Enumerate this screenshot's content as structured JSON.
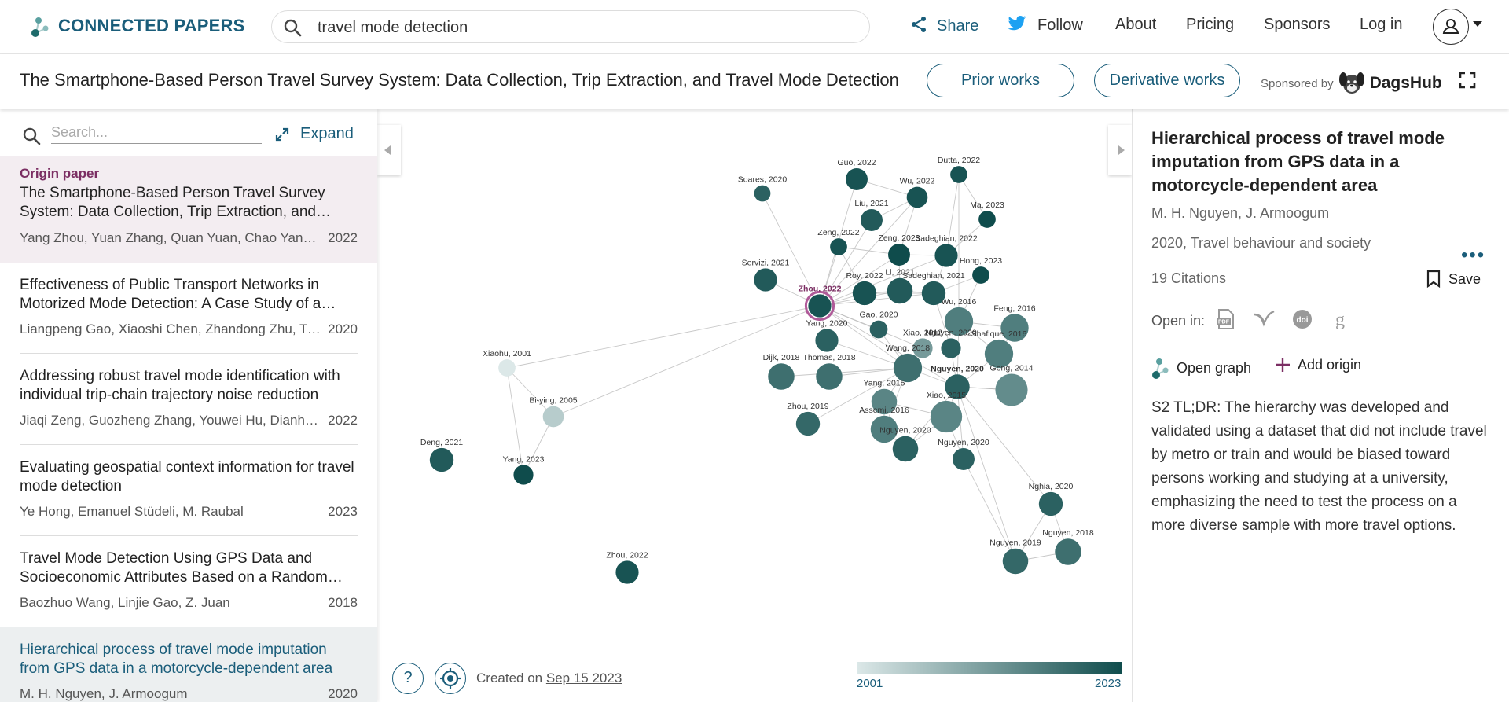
{
  "header": {
    "brand": "CONNECTED PAPERS",
    "search_value": "travel mode detection",
    "nav": {
      "share": "Share",
      "follow": "Follow",
      "about": "About",
      "pricing": "Pricing",
      "sponsors": "Sponsors",
      "login": "Log in"
    }
  },
  "titlebar": {
    "title": "The Smartphone-Based Person Travel Survey System: Data Collection, Trip Extraction, and Travel Mode Detection",
    "prior": "Prior works",
    "derivative": "Derivative works",
    "sponsored_by": "Sponsored by",
    "sponsor_name": "DagsHub"
  },
  "sidebar": {
    "search_placeholder": "Search...",
    "expand": "Expand",
    "origin_label": "Origin paper",
    "papers": [
      {
        "title": "The Smartphone-Based Person Travel Survey System: Data Collection, Trip Extraction, and Travel Mode Detection",
        "authors": "Yang Zhou, Yuan Zhang, Quan Yuan, Chao Yang, Tangyi Guo",
        "year": "2022"
      },
      {
        "title": "Effectiveness of Public Transport Networks in Motorized Mode Detection: A Case Study of a Chinese City",
        "authors": "Liangpeng Gao, Xiaoshi Chen, Zhandong Zhu, Tian",
        "year": "2020"
      },
      {
        "title": "Addressing robust travel mode identification with individual trip-chain trajectory noise reduction",
        "authors": "Jiaqi Zeng, Guozheng Zhang, Youwei Hu, Dianhai Wang",
        "year": "2022"
      },
      {
        "title": "Evaluating geospatial context information for travel mode detection",
        "authors": "Ye Hong, Emanuel Stüdeli, M. Raubal",
        "year": "2023"
      },
      {
        "title": "Travel Mode Detection Using GPS Data and Socioeconomic Attributes Based on a Random Forest Classifier",
        "authors": "Baozhuo Wang, Linjie Gao, Z. Juan",
        "year": "2018"
      },
      {
        "title": "Hierarchical process of travel mode imputation from GPS data in a motorcycle-dependent area",
        "authors": "M. H. Nguyen, J. Armoogum",
        "year": "2020"
      }
    ]
  },
  "graph": {
    "help": "?",
    "created_prefix": "Created on",
    "created_date": "Sep 15 2023",
    "scale_min": "2001",
    "scale_max": "2023",
    "nodes": [
      {
        "label": "Guo, 2022",
        "year": 2022,
        "cites": 14
      },
      {
        "label": "Dutta, 2022",
        "year": 2022,
        "cites": 6
      },
      {
        "label": "Soares, 2020",
        "year": 2020,
        "cites": 5
      },
      {
        "label": "Wu, 2022",
        "year": 2022,
        "cites": 12
      },
      {
        "label": "Liu, 2021",
        "year": 2021,
        "cites": 14
      },
      {
        "label": "Ma, 2023",
        "year": 2023,
        "cites": 6
      },
      {
        "label": "Zeng, 2022",
        "year": 2022,
        "cites": 6
      },
      {
        "label": "Zeng, 2023",
        "year": 2023,
        "cites": 14
      },
      {
        "label": "Sadeghian, 2022",
        "year": 2022,
        "cites": 16
      },
      {
        "label": "Servizi, 2021",
        "year": 2021,
        "cites": 16
      },
      {
        "label": "Hong, 2023",
        "year": 2023,
        "cites": 6
      },
      {
        "label": "Li, 2021",
        "year": 2021,
        "cites": 22
      },
      {
        "label": "Roy, 2022",
        "year": 2022,
        "cites": 18
      },
      {
        "label": "Sadeghian, 2021",
        "year": 2021,
        "cites": 18
      },
      {
        "label": "Zhou, 2022",
        "year": 2022,
        "cites": 16,
        "origin": true
      },
      {
        "label": "Wu, 2016",
        "year": 2016,
        "cites": 30
      },
      {
        "label": "Feng, 2016",
        "year": 2016,
        "cites": 28
      },
      {
        "label": "Gao, 2020",
        "year": 2020,
        "cites": 7
      },
      {
        "label": "Yang, 2020",
        "year": 2020,
        "cites": 16
      },
      {
        "label": "Xiao, 2012",
        "year": 2012,
        "cites": 10
      },
      {
        "label": "Nguyen, 2020",
        "year": 2020,
        "cites": 10
      },
      {
        "label": "Shafique, 2016",
        "year": 2016,
        "cites": 30
      },
      {
        "label": "Xiaohu, 2001",
        "year": 2001,
        "cites": 6
      },
      {
        "label": "Dijk, 2018",
        "year": 2018,
        "cites": 24
      },
      {
        "label": "Thomas, 2018",
        "year": 2018,
        "cites": 24
      },
      {
        "label": "Wang, 2018",
        "year": 2018,
        "cites": 30
      },
      {
        "label": "Nguyen, 2020",
        "year": 2020,
        "cites": 20,
        "bold": true
      },
      {
        "label": "Gong, 2014",
        "year": 2014,
        "cites": 42
      },
      {
        "label": "Bi-ying, 2005",
        "year": 2005,
        "cites": 12
      },
      {
        "label": "Yang, 2015",
        "year": 2015,
        "cites": 22
      },
      {
        "label": "Xiao, 2015",
        "year": 2015,
        "cites": 40
      },
      {
        "label": "Zhou, 2019",
        "year": 2019,
        "cites": 18
      },
      {
        "label": "Assemi, 2016",
        "year": 2016,
        "cites": 26
      },
      {
        "label": "Nguyen, 2020",
        "year": 2020,
        "cites": 22
      },
      {
        "label": "Nguyen, 2020",
        "year": 2020,
        "cites": 14
      },
      {
        "label": "Deng, 2021",
        "year": 2021,
        "cites": 18
      },
      {
        "label": "Yang, 2023",
        "year": 2023,
        "cites": 10
      },
      {
        "label": "Nghia, 2020",
        "year": 2020,
        "cites": 18
      },
      {
        "label": "Nguyen, 2018",
        "year": 2018,
        "cites": 24
      },
      {
        "label": "Nguyen, 2019",
        "year": 2019,
        "cites": 22
      },
      {
        "label": "Zhou, 2022",
        "year": 2022,
        "cites": 16
      }
    ]
  },
  "detail": {
    "title": "Hierarchical process of travel mode imputation from GPS data in a motorcycle-dependent area",
    "authors": "M. H. Nguyen, J. Armoogum",
    "venue": "2020, Travel behaviour and society",
    "citations": "19 Citations",
    "save": "Save",
    "open_in": "Open in:",
    "open_graph": "Open graph",
    "add_origin": "Add origin",
    "tldr": "S2 TL;DR: The hierarchy was developed and validated using a dataset that did not include travel by metro or train and would be biased toward persons working and studying at a university, emphasizing the need to test the process on a more diverse sample with more travel options."
  }
}
